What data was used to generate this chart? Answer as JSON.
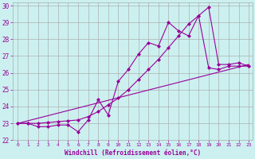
{
  "xlabel": "Windchill (Refroidissement éolien,°C)",
  "ylabel": "",
  "line_color": "#990099",
  "bg_color": "#ccf0f0",
  "grid_color": "#aaaaaa",
  "xlim": [
    -0.5,
    23.4
  ],
  "ylim": [
    22.0,
    30.2
  ],
  "xticks": [
    0,
    1,
    2,
    3,
    4,
    5,
    6,
    7,
    8,
    9,
    10,
    11,
    12,
    13,
    14,
    15,
    16,
    17,
    18,
    19,
    20,
    21,
    22,
    23
  ],
  "yticks": [
    22,
    23,
    24,
    25,
    26,
    27,
    28,
    29,
    30
  ],
  "line1_x": [
    0,
    1,
    2,
    3,
    4,
    5,
    6,
    7,
    8,
    9,
    10,
    11,
    12,
    13,
    14,
    15,
    16,
    17,
    18,
    19,
    20,
    21,
    22,
    23
  ],
  "line1_y": [
    23.0,
    23.0,
    22.8,
    22.8,
    22.9,
    22.9,
    22.5,
    23.2,
    24.4,
    23.5,
    25.5,
    26.2,
    27.1,
    27.8,
    27.6,
    29.0,
    28.5,
    28.2,
    29.4,
    29.9,
    26.5,
    26.5,
    26.6,
    26.4
  ],
  "line2_x": [
    0,
    23
  ],
  "line2_y": [
    23.0,
    26.5
  ],
  "line3_x": [
    0,
    1,
    2,
    3,
    4,
    5,
    6,
    7,
    8,
    9,
    10,
    11,
    12,
    13,
    14,
    15,
    16,
    17,
    18,
    19,
    20,
    21,
    22,
    23
  ],
  "line3_y": [
    23.0,
    23.0,
    23.0,
    23.05,
    23.1,
    23.15,
    23.2,
    23.4,
    23.7,
    24.1,
    24.5,
    25.0,
    25.6,
    26.2,
    26.8,
    27.5,
    28.2,
    28.9,
    29.4,
    26.3,
    26.2,
    26.4,
    26.4,
    26.4
  ]
}
